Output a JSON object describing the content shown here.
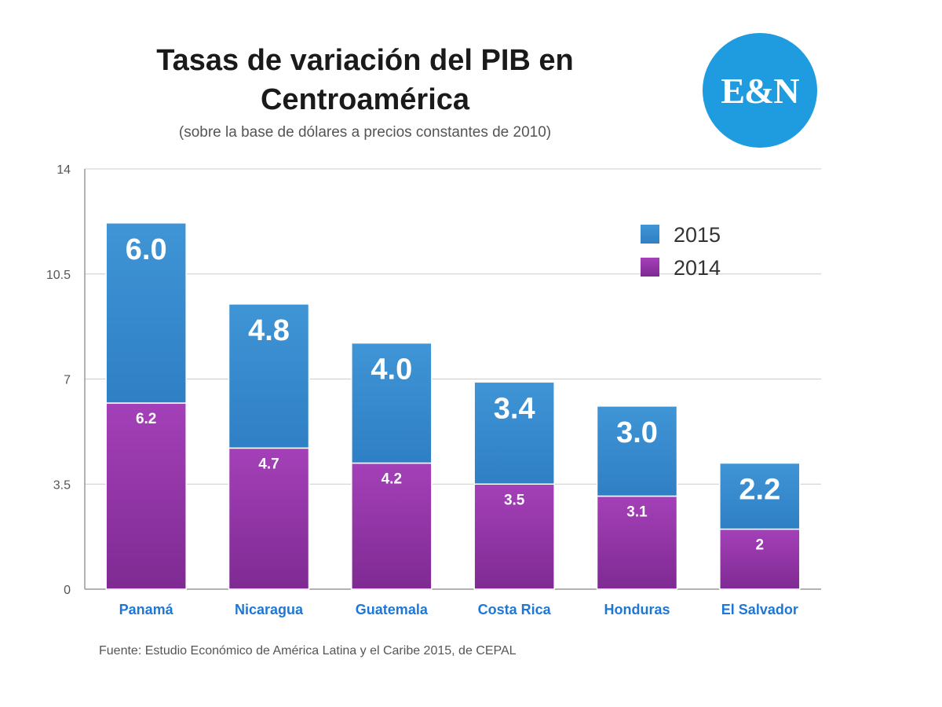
{
  "header": {
    "title_line1": "Tasas de variación del PIB en",
    "title_line2": "Centroamérica",
    "subtitle": "(sobre la base de dólares a precios constantes de 2010)"
  },
  "logo": {
    "text": "E&N",
    "color": "#1f9be0"
  },
  "footer": {
    "source": "Fuente: Estudio Económico de América Latina y el Caribe 2015, de CEPAL"
  },
  "chart_data": {
    "type": "bar",
    "stacked": true,
    "title": "Tasas de variación del PIB en Centroamérica",
    "subtitle": "(sobre la base de dólares a precios constantes de 2010)",
    "categories": [
      "Panamá",
      "Nicaragua",
      "Guatemala",
      "Costa Rica",
      "Honduras",
      "El Salvador"
    ],
    "series": [
      {
        "name": "2014",
        "color": "#9b3ab0",
        "values": [
          6.2,
          4.7,
          4.2,
          3.5,
          3.1,
          2
        ],
        "labels": [
          "6.2",
          "4.7",
          "4.2",
          "3.5",
          "3.1",
          "2"
        ]
      },
      {
        "name": "2015",
        "color": "#3a8fd0",
        "values": [
          6.0,
          4.8,
          4.0,
          3.4,
          3.0,
          2.2
        ],
        "labels": [
          "6.0",
          "4.8",
          "4.0",
          "3.4",
          "3.0",
          "2.2"
        ]
      }
    ],
    "legend_order": [
      "2015",
      "2014"
    ],
    "legend_position": "top-right",
    "ylim": [
      0,
      14
    ],
    "yticks": [
      0,
      3.5,
      7,
      10.5,
      14
    ],
    "ytick_labels": [
      "0",
      "3.5",
      "7",
      "10.5",
      "14"
    ],
    "grid": true,
    "xlabel": "",
    "ylabel": "",
    "tick_label_color": "#1f77d4"
  }
}
